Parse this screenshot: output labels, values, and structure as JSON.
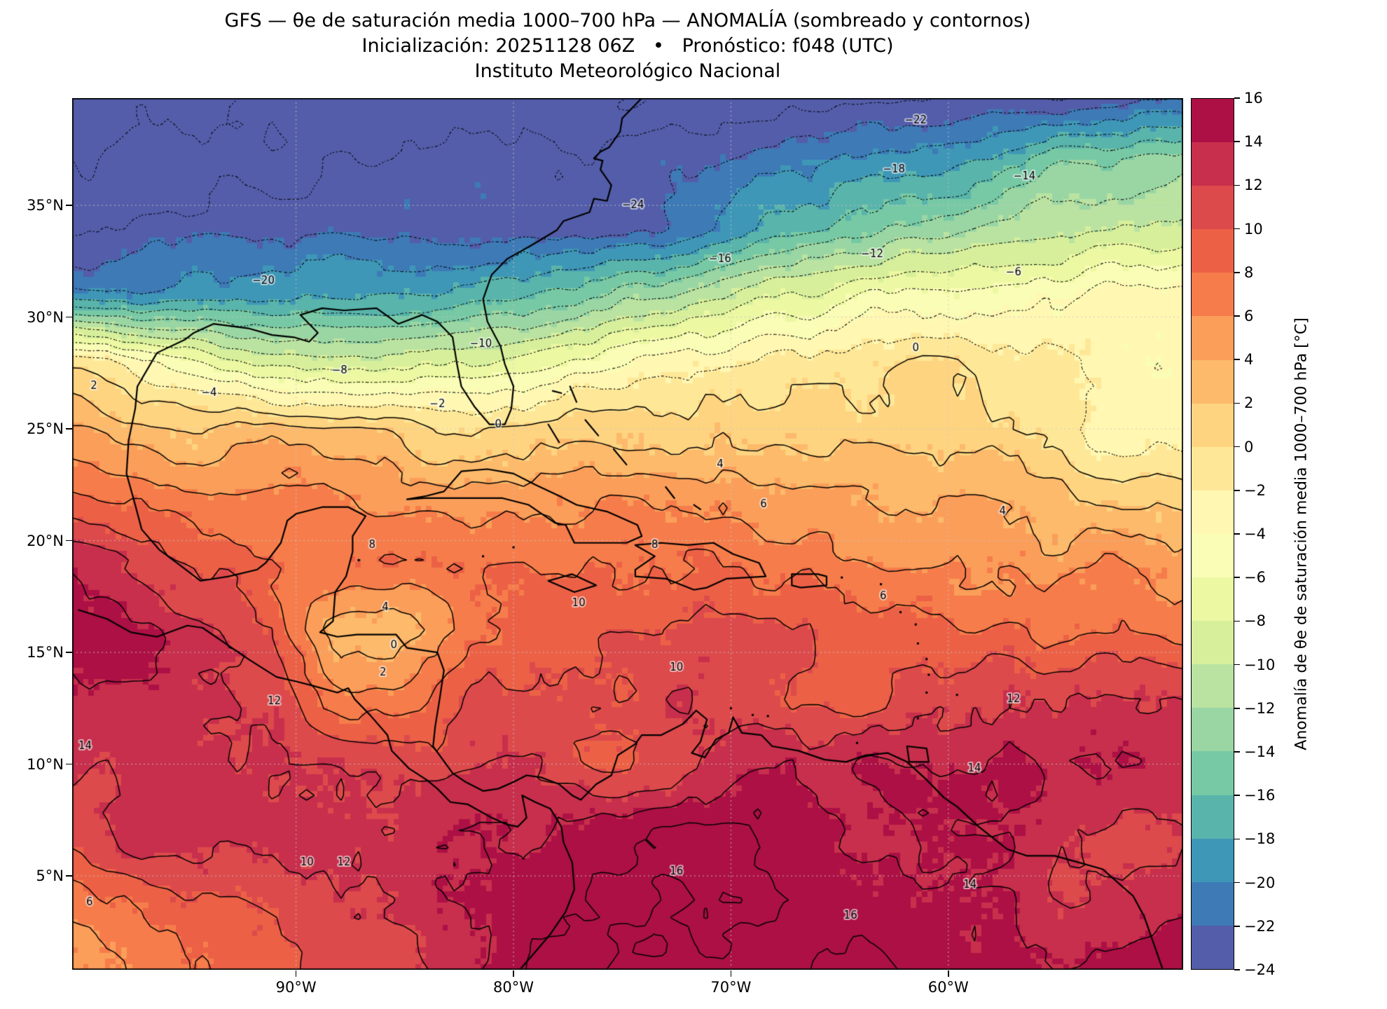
{
  "header": {
    "title_line1": "GFS — θe de saturación media 1000–700 hPa — ANOMALÍA (sombreado y contornos)",
    "title_line2": "Inicialización: 20251128 06Z   •   Pronóstico: f048 (UTC)",
    "title_line3": "Instituto Meteorológico Nacional"
  },
  "chart_data": {
    "type": "heatmap",
    "title": "GFS — θe de saturación media 1000–700 hPa — ANOMALÍA (sombreado y contornos)",
    "subtitle": "Inicialización: 20251128 06Z • Pronóstico: f048 (UTC)",
    "source": "Instituto Meteorológico Nacional",
    "xlabel": "",
    "ylabel": "",
    "lon_range": [
      -100.3,
      -49.2
    ],
    "lat_range": [
      0.8,
      39.8
    ],
    "grid_on": true,
    "contour_interval": 2,
    "levels_min": -24,
    "levels_max": 16,
    "colormap": "Spectral_r",
    "colormap_stops": [
      "#9e0142",
      "#d53e4f",
      "#f46d43",
      "#fdae61",
      "#fee08b",
      "#ffffbf",
      "#e6f598",
      "#abdda4",
      "#66c2a5",
      "#3288bd",
      "#5e4fa2"
    ],
    "x_ticks": [
      {
        "label": "90°W",
        "lon": -90
      },
      {
        "label": "80°W",
        "lon": -80
      },
      {
        "label": "70°W",
        "lon": -70
      },
      {
        "label": "60°W",
        "lon": -60
      }
    ],
    "y_ticks": [
      {
        "label": "35°N",
        "lat": 35
      },
      {
        "label": "30°N",
        "lat": 30
      },
      {
        "label": "25°N",
        "lat": 25
      },
      {
        "label": "20°N",
        "lat": 20
      },
      {
        "label": "15°N",
        "lat": 15
      },
      {
        "label": "10°N",
        "lat": 10
      },
      {
        "label": "5°N",
        "lat": 5
      }
    ],
    "grid": {
      "lons": [
        -100,
        -97,
        -94,
        -91,
        -88,
        -85,
        -82,
        -79,
        -76,
        -73,
        -70,
        -67,
        -64,
        -61,
        -58,
        -55,
        -52,
        -49
      ],
      "lats": [
        40,
        37,
        34,
        31,
        28,
        25,
        22,
        19,
        16,
        13,
        10,
        7,
        4,
        1
      ],
      "values": [
        [
          -27,
          -27,
          -27,
          -27,
          -26,
          -26,
          -26,
          -26,
          -26,
          -26,
          -26,
          -25,
          -25,
          -24,
          -24,
          -24,
          -23,
          -23
        ],
        [
          -26,
          -25,
          -25,
          -25,
          -24,
          -24,
          -24,
          -23,
          -23,
          -22,
          -21,
          -20,
          -19,
          -18,
          -16,
          -14,
          -13,
          -12
        ],
        [
          -24,
          -24,
          -23,
          -23,
          -23,
          -23,
          -23,
          -23,
          -23,
          -22,
          -19,
          -17,
          -15,
          -13,
          -11,
          -10,
          -9,
          -8
        ],
        [
          -20,
          -20,
          -19,
          -19,
          -18,
          -17,
          -16,
          -15,
          -14,
          -12,
          -10,
          -8,
          -6,
          -5,
          -4,
          -3,
          -2,
          -2
        ],
        [
          0,
          -3,
          -6,
          -9,
          -9,
          -8,
          -7,
          -6,
          -5,
          -3,
          -2,
          -1,
          0,
          0,
          -1,
          -1,
          -2,
          -2
        ],
        [
          4,
          3,
          2,
          2,
          2,
          2,
          1,
          1,
          1,
          2,
          2,
          2,
          1,
          0,
          -1,
          -1,
          -2,
          -2
        ],
        [
          8,
          7,
          6,
          6,
          6,
          6,
          6,
          5,
          5,
          5,
          5,
          4,
          4,
          3,
          3,
          2,
          2,
          1
        ],
        [
          14,
          12,
          10,
          8,
          8,
          8,
          8,
          8,
          8,
          7,
          7,
          7,
          6,
          6,
          6,
          5,
          5,
          4
        ],
        [
          16,
          15,
          12,
          10,
          3,
          2,
          6,
          9,
          10,
          10,
          10,
          9,
          8,
          8,
          8,
          7,
          7,
          6
        ],
        [
          15,
          15,
          13,
          12,
          6,
          6,
          10,
          11,
          11,
          11,
          10,
          10,
          10,
          11,
          11,
          12,
          12,
          12
        ],
        [
          14,
          13,
          13,
          12,
          11,
          11,
          11,
          12,
          10,
          10,
          12,
          14,
          15,
          14,
          13,
          14,
          14,
          14
        ],
        [
          12,
          12,
          12,
          12,
          12,
          12,
          13,
          14,
          16,
          16,
          16,
          15,
          14,
          14,
          13,
          13,
          12,
          12
        ],
        [
          7,
          8,
          9,
          10,
          11,
          12,
          14,
          16,
          17,
          16,
          16,
          15,
          16,
          14,
          13,
          12,
          13,
          14
        ],
        [
          6,
          7,
          8,
          9,
          10,
          12,
          15,
          17,
          17,
          16,
          16,
          16,
          16,
          15,
          14,
          14,
          15,
          16
        ]
      ]
    },
    "contour_labels": [
      {
        "t": "−24",
        "lon": -74.5,
        "lat": 35.0
      },
      {
        "t": "−22",
        "lon": -61.5,
        "lat": 38.8
      },
      {
        "t": "−20",
        "lon": -91.5,
        "lat": 31.6
      },
      {
        "t": "−18",
        "lon": -62.5,
        "lat": 36.6
      },
      {
        "t": "−16",
        "lon": -70.5,
        "lat": 32.6
      },
      {
        "t": "−14",
        "lon": -56.5,
        "lat": 36.3
      },
      {
        "t": "−12",
        "lon": -63.5,
        "lat": 32.8
      },
      {
        "t": "−10",
        "lon": -81.5,
        "lat": 28.8
      },
      {
        "t": "−8",
        "lon": -88.0,
        "lat": 27.6
      },
      {
        "t": "−6",
        "lon": -57.0,
        "lat": 32.0
      },
      {
        "t": "−4",
        "lon": -94.0,
        "lat": 26.6
      },
      {
        "t": "−2",
        "lon": -83.5,
        "lat": 26.1
      },
      {
        "t": "0",
        "lon": -80.7,
        "lat": 25.2
      },
      {
        "t": "0",
        "lon": -61.5,
        "lat": 28.6
      },
      {
        "t": "2",
        "lon": -99.3,
        "lat": 26.9
      },
      {
        "t": "2",
        "lon": -86.0,
        "lat": 14.1
      },
      {
        "t": "0",
        "lon": -85.5,
        "lat": 15.3
      },
      {
        "t": "4",
        "lon": -85.9,
        "lat": 17.0
      },
      {
        "t": "4",
        "lon": -70.5,
        "lat": 23.4
      },
      {
        "t": "4",
        "lon": -57.5,
        "lat": 21.3
      },
      {
        "t": "6",
        "lon": -68.5,
        "lat": 21.6
      },
      {
        "t": "6",
        "lon": -63.0,
        "lat": 17.5
      },
      {
        "t": "6",
        "lon": -99.5,
        "lat": 3.8
      },
      {
        "t": "8",
        "lon": -73.5,
        "lat": 19.8
      },
      {
        "t": "8",
        "lon": -86.5,
        "lat": 19.8
      },
      {
        "t": "10",
        "lon": -77.0,
        "lat": 17.2
      },
      {
        "t": "10",
        "lon": -72.5,
        "lat": 14.3
      },
      {
        "t": "10",
        "lon": -89.5,
        "lat": 5.6
      },
      {
        "t": "12",
        "lon": -91.0,
        "lat": 12.8
      },
      {
        "t": "12",
        "lon": -87.8,
        "lat": 5.6
      },
      {
        "t": "12",
        "lon": -57.0,
        "lat": 12.9
      },
      {
        "t": "14",
        "lon": -99.7,
        "lat": 10.8
      },
      {
        "t": "14",
        "lon": -58.8,
        "lat": 9.8
      },
      {
        "t": "14",
        "lon": -59.0,
        "lat": 4.6
      },
      {
        "t": "16",
        "lon": -72.5,
        "lat": 5.2
      },
      {
        "t": "16",
        "lon": -64.5,
        "lat": 3.2
      }
    ],
    "colorbar": {
      "label": "Anomalía de θe de saturación media 1000–700 hPa [°C]",
      "vmin": -24,
      "vmax": 16,
      "tick_labels": [
        "16",
        "14",
        "12",
        "10",
        "8",
        "6",
        "4",
        "2",
        "0",
        "−2",
        "−4",
        "−6",
        "−8",
        "−10",
        "−12",
        "−14",
        "−16",
        "−18",
        "−20",
        "−22",
        "−24"
      ]
    }
  }
}
